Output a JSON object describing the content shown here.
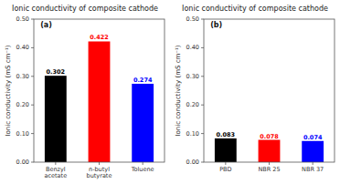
{
  "chart_data": [
    {
      "type": "bar",
      "title": "Ionic conductivity of composite cathode",
      "annotations": [
        "(a)"
      ],
      "categories": [
        "Benzyl acetate",
        "n-butyl butyrate",
        "Toluene"
      ],
      "values": [
        0.302,
        0.422,
        0.274
      ],
      "colors": [
        "#000000",
        "#ff0000",
        "#0000ff"
      ],
      "ylim": [
        0,
        0.5
      ],
      "yticks": [
        {
          "value": 0.0,
          "label": "0.00"
        },
        {
          "value": 0.1,
          "label": "0.10"
        },
        {
          "value": 0.2,
          "label": "0.20"
        },
        {
          "value": 0.3,
          "label": "0.30"
        },
        {
          "value": 0.4,
          "label": "0.40"
        },
        {
          "value": 0.5,
          "label": "0.50"
        }
      ],
      "ylabel": "Ionic conductivity (mS cm⁻¹)",
      "data_labels": true
    },
    {
      "type": "bar",
      "title": "Ionic conductivity of composite cathode",
      "annotations": [
        "(b)"
      ],
      "categories": [
        "PBD",
        "NBR 25",
        "NBR 37"
      ],
      "values": [
        0.083,
        0.078,
        0.074
      ],
      "colors": [
        "#000000",
        "#ff0000",
        "#0000ff"
      ],
      "ylim": [
        0,
        0.5
      ],
      "yticks": [
        {
          "value": 0.0,
          "label": "0.00"
        },
        {
          "value": 0.1,
          "label": "0.10"
        },
        {
          "value": 0.2,
          "label": "0.20"
        },
        {
          "value": 0.3,
          "label": "0.30"
        },
        {
          "value": 0.4,
          "label": "0.40"
        },
        {
          "value": 0.5,
          "label": "0.50"
        }
      ],
      "ylabel": "Ionic conductivity (mS cm⁻¹)",
      "data_labels": true
    }
  ]
}
